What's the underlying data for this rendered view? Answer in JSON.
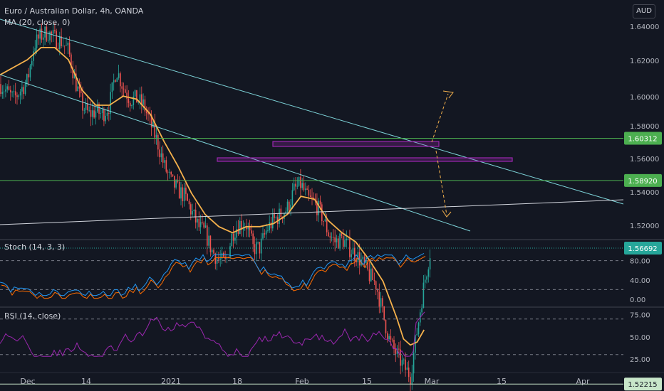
{
  "header": {
    "symbol_title": "Euro / Australian Dollar, 4h, OANDA",
    "ma_label": "MA (20, close, 0)",
    "currency": "AUD"
  },
  "stoch_label": "Stoch (14, 3, 3)",
  "rsi_label": "RSI (14, close)",
  "colors": {
    "background": "#131722",
    "candle_up": "#26a69a",
    "candle_down": "#ef5350",
    "ma": "#f5b14c",
    "channel": "#7dd3d8",
    "support_line": "#d1d4dc",
    "green_level": "#4caf50",
    "box": "#9c27b0",
    "projection": "#f5b14c",
    "stoch_k": "#2196f3",
    "stoch_d": "#ff6d00",
    "rsi": "#9c27b0"
  },
  "chart_data": {
    "type": "candlestick",
    "title": "Euro / Australian Dollar, 4h, OANDA",
    "y_range": [
      1.515,
      1.648
    ],
    "x_labels": [
      "Dec",
      "14",
      "2021",
      "18",
      "Feb",
      "15",
      "Mar",
      "15",
      "Apr"
    ],
    "y_ticks": [
      "1.64000",
      "1.62000",
      "1.60000",
      "1.58000",
      "1.56000",
      "1.54000",
      "1.52000"
    ],
    "price_levels": [
      {
        "value": 1.60312,
        "label": "1.60312",
        "style": "green"
      },
      {
        "value": 1.5892,
        "label": "1.58920",
        "style": "green"
      },
      {
        "value": 1.56692,
        "label": "1.56692",
        "style": "current"
      },
      {
        "value": 1.52215,
        "label": "1.52215",
        "style": "light"
      }
    ],
    "price_path": [
      [
        0,
        1.621
      ],
      [
        2,
        1.616
      ],
      [
        4,
        1.622
      ],
      [
        5,
        1.634
      ],
      [
        6,
        1.637
      ],
      [
        7,
        1.638
      ],
      [
        8,
        1.636
      ],
      [
        9,
        1.635
      ],
      [
        10,
        1.632
      ],
      [
        11,
        1.622
      ],
      [
        12,
        1.614
      ],
      [
        13,
        1.611
      ],
      [
        14,
        1.612
      ],
      [
        15,
        1.611
      ],
      [
        16,
        1.614
      ],
      [
        17,
        1.626
      ],
      [
        18,
        1.62
      ],
      [
        19,
        1.616
      ],
      [
        20,
        1.616
      ],
      [
        21,
        1.614
      ],
      [
        22,
        1.608
      ],
      [
        23,
        1.602
      ],
      [
        24,
        1.594
      ],
      [
        25,
        1.589
      ],
      [
        26,
        1.586
      ],
      [
        27,
        1.584
      ],
      [
        28,
        1.579
      ],
      [
        29,
        1.574
      ],
      [
        30,
        1.572
      ],
      [
        31,
        1.566
      ],
      [
        32,
        1.563
      ],
      [
        33,
        1.562
      ],
      [
        34,
        1.572
      ],
      [
        35,
        1.575
      ],
      [
        36,
        1.575
      ],
      [
        37,
        1.567
      ],
      [
        38,
        1.567
      ],
      [
        39,
        1.573
      ],
      [
        40,
        1.576
      ],
      [
        41,
        1.578
      ],
      [
        42,
        1.58
      ],
      [
        43,
        1.586
      ],
      [
        44,
        1.588
      ],
      [
        45,
        1.583
      ],
      [
        46,
        1.582
      ],
      [
        47,
        1.578
      ],
      [
        48,
        1.572
      ],
      [
        49,
        1.569
      ],
      [
        50,
        1.57
      ],
      [
        51,
        1.567
      ],
      [
        52,
        1.565
      ],
      [
        53,
        1.562
      ],
      [
        54,
        1.558
      ],
      [
        55,
        1.555
      ],
      [
        56,
        1.545
      ],
      [
        57,
        1.536
      ],
      [
        58,
        1.532
      ],
      [
        59,
        1.528
      ],
      [
        60,
        1.525
      ],
      [
        61,
        1.54
      ],
      [
        62,
        1.555
      ],
      [
        63,
        1.567
      ]
    ],
    "ma20_path": [
      [
        0,
        1.624
      ],
      [
        4,
        1.629
      ],
      [
        6,
        1.633
      ],
      [
        8,
        1.633
      ],
      [
        10,
        1.629
      ],
      [
        12,
        1.619
      ],
      [
        14,
        1.614
      ],
      [
        16,
        1.614
      ],
      [
        18,
        1.617
      ],
      [
        20,
        1.616
      ],
      [
        22,
        1.611
      ],
      [
        24,
        1.602
      ],
      [
        26,
        1.594
      ],
      [
        28,
        1.585
      ],
      [
        30,
        1.578
      ],
      [
        32,
        1.574
      ],
      [
        34,
        1.572
      ],
      [
        36,
        1.574
      ],
      [
        38,
        1.574
      ],
      [
        40,
        1.575
      ],
      [
        42,
        1.578
      ],
      [
        44,
        1.584
      ],
      [
        46,
        1.583
      ],
      [
        48,
        1.576
      ],
      [
        50,
        1.572
      ],
      [
        52,
        1.569
      ],
      [
        54,
        1.563
      ],
      [
        56,
        1.556
      ],
      [
        58,
        1.544
      ],
      [
        59,
        1.537
      ],
      [
        60,
        1.535
      ],
      [
        61,
        1.536
      ],
      [
        62,
        1.54
      ]
    ],
    "stochastic": {
      "name": "Stoch (14, 3, 3)",
      "y_ticks": [
        "80.00",
        "40.00",
        "0.00"
      ],
      "levels": [
        80,
        20
      ]
    },
    "rsi": {
      "name": "RSI (14, close)",
      "y_ticks": [
        "75.00",
        "50.00",
        "25.00"
      ],
      "levels": [
        70,
        30
      ]
    }
  }
}
